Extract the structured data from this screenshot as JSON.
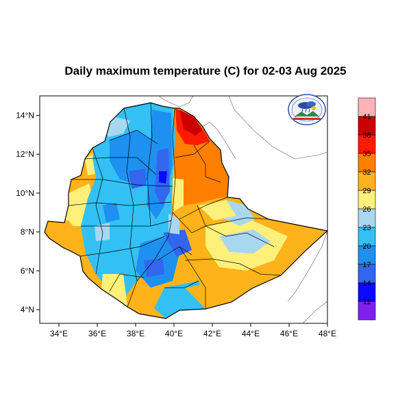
{
  "title": "Daily maximum temperature (C) for 02-03 Aug 2025",
  "map": {
    "lon_range": [
      33,
      48
    ],
    "lat_range": [
      3.3,
      15
    ],
    "x_ticks": [
      {
        "value": 34,
        "label": "34°E"
      },
      {
        "value": 36,
        "label": "36°E"
      },
      {
        "value": 38,
        "label": "38°E"
      },
      {
        "value": 40,
        "label": "40°E"
      },
      {
        "value": 42,
        "label": "42°E"
      },
      {
        "value": 44,
        "label": "44°E"
      },
      {
        "value": 46,
        "label": "46°E"
      },
      {
        "value": 48,
        "label": "48°E"
      }
    ],
    "y_ticks": [
      {
        "value": 14,
        "label": "14°N"
      },
      {
        "value": 12,
        "label": "12°N"
      },
      {
        "value": 10,
        "label": "10°N"
      },
      {
        "value": 8,
        "label": "8°N"
      },
      {
        "value": 6,
        "label": "6°N"
      },
      {
        "value": 4,
        "label": "4°N"
      }
    ]
  },
  "colorbar": {
    "levels": [
      "41",
      "38",
      "35",
      "32",
      "29",
      "26",
      "23",
      "20",
      "17",
      "14",
      "11"
    ],
    "colors": [
      "#ffb3b8",
      "#cc0000",
      "#ff1a00",
      "#ff7f00",
      "#ffb31a",
      "#fff07a",
      "#a8d8f0",
      "#33c0f5",
      "#1e90f0",
      "#3366ee",
      "#0a0aff",
      "#8020f0"
    ]
  },
  "colors": {
    "border": "#000000",
    "coast": "#888888",
    "frame": "#000000"
  },
  "logo": {
    "icon": "ethiopian-meteorology-institute-logo"
  }
}
